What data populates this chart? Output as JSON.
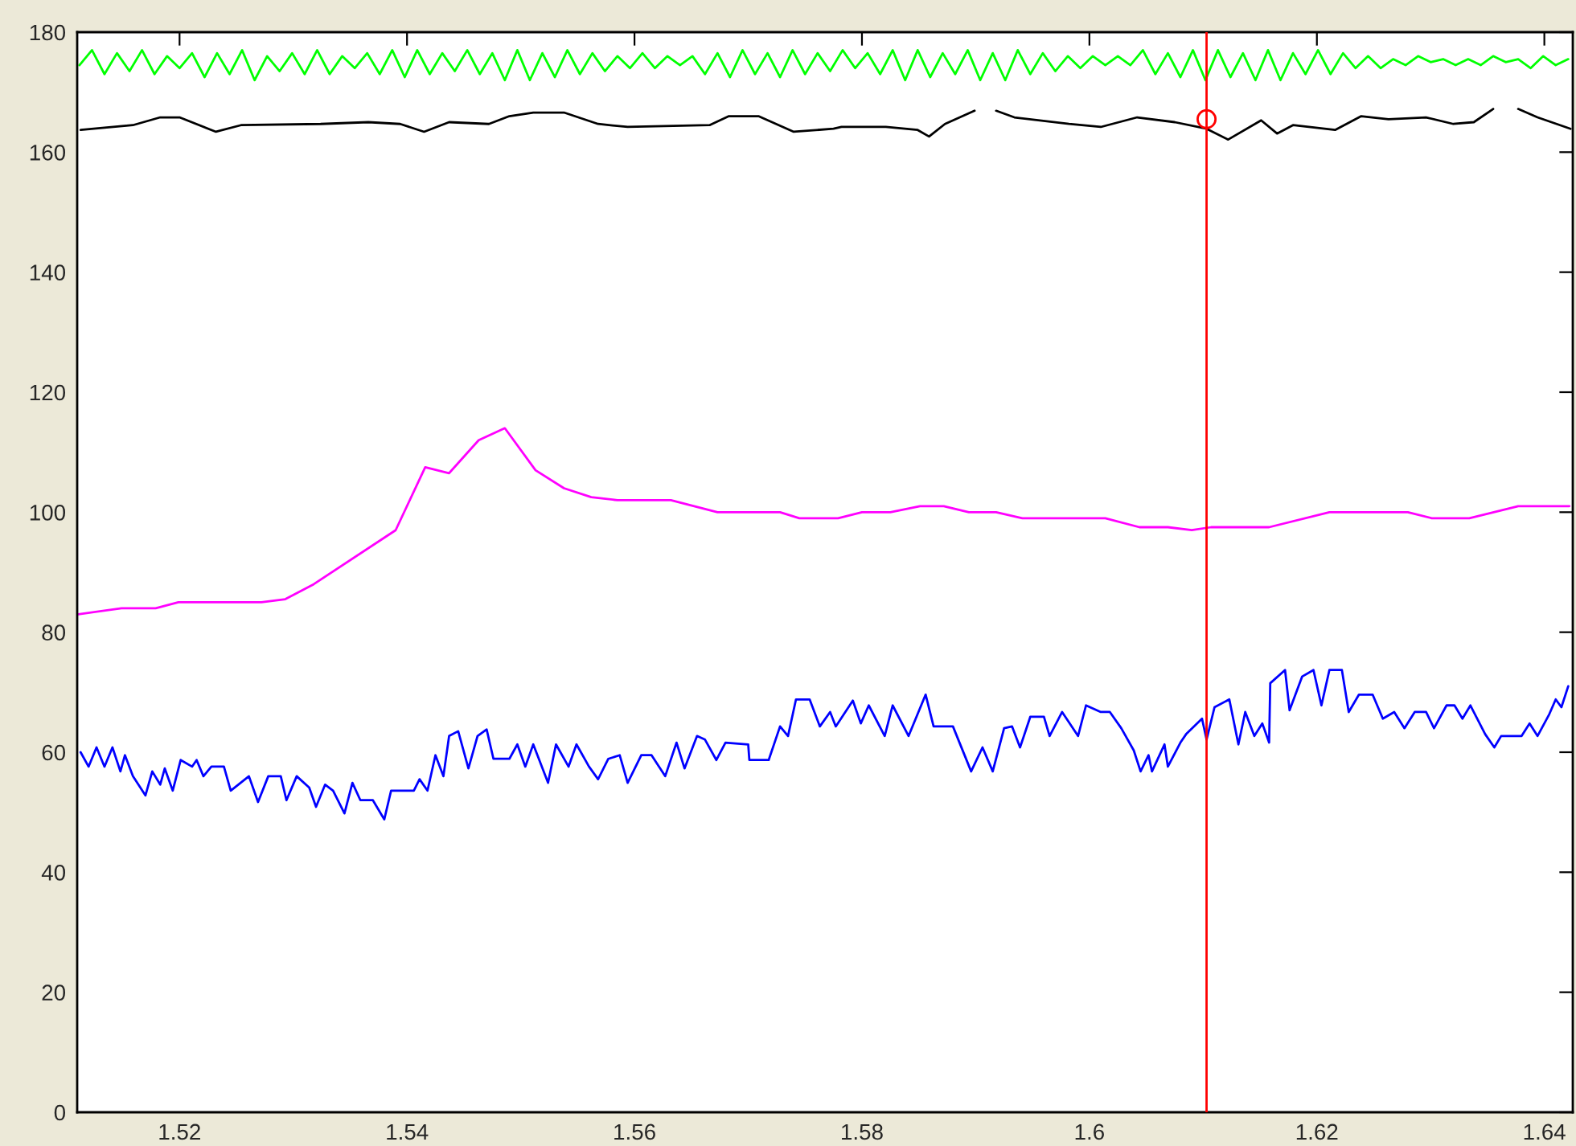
{
  "chart_data": {
    "type": "line",
    "xlim": [
      1.511,
      1.6425
    ],
    "ylim": [
      0,
      180
    ],
    "xticks": [
      1.52,
      1.54,
      1.56,
      1.58,
      {
        "value": 1.6,
        "label": "1.6"
      },
      1.62,
      1.64
    ],
    "yticks": [
      0,
      20,
      40,
      60,
      80,
      100,
      120,
      140,
      160,
      180
    ],
    "grid": false,
    "legend": false,
    "ref_lines": [
      {
        "axis": "x",
        "value": 1.6103,
        "color": "#ff0000",
        "line_style": "solid"
      }
    ],
    "series": [
      {
        "color": "#00ff00",
        "x": [
          1.5112,
          1.5123,
          1.5134,
          1.5145,
          1.5156,
          1.5167,
          1.5178,
          1.5189,
          1.52,
          1.5211,
          1.5222,
          1.5233,
          1.5244,
          1.5255,
          1.5266,
          1.5277,
          1.5288,
          1.5299,
          1.531,
          1.5321,
          1.5332,
          1.5343,
          1.5354,
          1.5365,
          1.5376,
          1.5387,
          1.5398,
          1.5409,
          1.542,
          1.5431,
          1.5442,
          1.5453,
          1.5464,
          1.5475,
          1.5486,
          1.5497,
          1.5508,
          1.5519,
          1.553,
          1.5541,
          1.5552,
          1.5563,
          1.5574,
          1.5585,
          1.5596,
          1.5607,
          1.5618,
          1.5629,
          1.564,
          1.5651,
          1.5662,
          1.5673,
          1.5684,
          1.5695,
          1.5706,
          1.5717,
          1.5728,
          1.5739,
          1.575,
          1.5761,
          1.5772,
          1.5783,
          1.5794,
          1.5805,
          1.5816,
          1.5827,
          1.5838,
          1.5849,
          1.586,
          1.5871,
          1.5882,
          1.5893,
          1.5904,
          1.5915,
          1.5926,
          1.5937,
          1.5948,
          1.5959,
          1.597,
          1.5981,
          1.5992,
          1.6003,
          1.6014,
          1.6025,
          1.6036,
          1.6047,
          1.6058,
          1.6069,
          1.608,
          1.6091,
          1.6102,
          1.6113,
          1.6124,
          1.6135,
          1.6146,
          1.6157,
          1.6168,
          1.6179,
          1.619,
          1.6201,
          1.6212,
          1.6223,
          1.6234,
          1.6245,
          1.6256,
          1.6267,
          1.6278,
          1.6289,
          1.63,
          1.6311,
          1.6322,
          1.6333,
          1.6344,
          1.6355,
          1.6366,
          1.6377,
          1.6388,
          1.6399,
          1.641,
          1.6421
        ],
        "values": [
          174.5,
          177,
          173,
          176.5,
          173.5,
          177,
          173,
          176,
          174,
          176.5,
          172.5,
          176.5,
          173,
          177,
          172,
          176,
          173.5,
          176.5,
          173,
          177,
          173,
          176,
          174,
          176.5,
          173,
          177,
          172.5,
          177,
          173,
          176.5,
          173.5,
          177,
          173,
          176.5,
          172,
          177,
          172,
          176.5,
          172.5,
          177,
          173,
          176.5,
          173.5,
          176,
          174,
          176.5,
          174,
          176,
          174.5,
          176,
          173,
          176.5,
          172.5,
          177,
          173,
          176.5,
          172.5,
          177,
          173,
          176.5,
          173.5,
          177,
          174,
          176.5,
          173,
          177,
          172,
          177,
          172.5,
          176.5,
          173,
          177,
          172,
          176.5,
          172,
          177,
          173,
          176.5,
          173.5,
          176,
          174,
          176,
          174.5,
          176,
          174.5,
          177,
          173,
          176.5,
          172.5,
          177,
          172,
          177,
          172.5,
          176.5,
          172,
          177,
          172,
          176.5,
          173,
          177,
          173,
          176.5,
          174,
          176,
          174,
          175.5,
          174.5,
          176,
          175,
          175.5,
          174.5,
          175.5,
          174.5,
          176,
          175,
          175.5,
          174,
          176,
          174.5,
          175.5
        ]
      },
      {
        "color": "#000000",
        "x": [
          1.5113,
          1.5159,
          1.5183,
          1.52,
          1.5232,
          1.5254,
          1.5324,
          1.5366,
          1.5394,
          1.5415,
          1.5437,
          1.5472,
          1.549,
          1.5511,
          1.5538,
          1.5568,
          1.5594,
          1.5666,
          1.5683,
          1.5709,
          1.574,
          1.5775,
          1.5782,
          1.5821,
          1.5849,
          1.5859,
          1.5873,
          1.5899,
          1.5905,
          1.5918,
          1.5934,
          1.5982,
          1.601,
          1.6042,
          1.6075,
          1.6103,
          1.6122,
          1.6151,
          1.6165,
          1.6179,
          1.6216,
          1.6239,
          1.6263,
          1.6296,
          1.632,
          1.6338,
          1.6355,
          1.6365,
          1.6377,
          1.6394,
          1.6423
        ],
        "values": [
          163.7,
          164.5,
          165.8,
          165.8,
          163.4,
          164.5,
          164.7,
          165,
          164.7,
          163.4,
          165,
          164.7,
          166,
          166.6,
          166.6,
          164.7,
          164.2,
          164.5,
          166,
          166,
          163.4,
          163.9,
          164.2,
          164.2,
          163.7,
          162.6,
          164.7,
          166.9,
          null,
          166.9,
          165.8,
          164.7,
          164.2,
          165.8,
          165,
          163.9,
          162.1,
          165.3,
          163.1,
          164.5,
          163.7,
          166,
          165.5,
          165.8,
          164.7,
          165,
          167.2,
          null,
          167.2,
          165.8,
          163.9
        ]
      },
      {
        "color": "#ff00ff",
        "x": [
          1.5111,
          1.5149,
          1.5179,
          1.5199,
          1.5272,
          1.5293,
          1.5318,
          1.539,
          1.5416,
          1.5437,
          1.5463,
          1.5486,
          1.5513,
          1.5538,
          1.5562,
          1.5585,
          1.5632,
          1.5673,
          1.5728,
          1.5745,
          1.5779,
          1.58,
          1.5825,
          1.5851,
          1.5872,
          1.5894,
          1.5918,
          1.5941,
          1.6014,
          1.6044,
          1.6069,
          1.609,
          1.6107,
          1.6158,
          1.6211,
          1.628,
          1.6301,
          1.6334,
          1.6377,
          1.6422
        ],
        "values": [
          83,
          84,
          84,
          85,
          85,
          85.5,
          88,
          97,
          107.5,
          106.5,
          112,
          114,
          107,
          104,
          102.5,
          102,
          102,
          100,
          100,
          99,
          99,
          100,
          100,
          101,
          101,
          100,
          100,
          99,
          99,
          97.5,
          97.5,
          97,
          97.5,
          97.5,
          100,
          100,
          99,
          99,
          101,
          101
        ]
      },
      {
        "color": "#0000ff",
        "x": [
          1.5113,
          1.512,
          1.5127,
          1.5134,
          1.5141,
          1.5148,
          1.5152,
          1.5159,
          1.517,
          1.5176,
          1.5183,
          1.5187,
          1.5194,
          1.5201,
          1.5211,
          1.5215,
          1.5221,
          1.5228,
          1.5239,
          1.5245,
          1.5261,
          1.5269,
          1.5278,
          1.5289,
          1.5294,
          1.5303,
          1.5314,
          1.532,
          1.5328,
          1.5335,
          1.5345,
          1.5352,
          1.5359,
          1.537,
          1.538,
          1.5386,
          1.5406,
          1.5411,
          1.5418,
          1.5425,
          1.5432,
          1.5437,
          1.5445,
          1.5454,
          1.5462,
          1.547,
          1.5476,
          1.549,
          1.5497,
          1.5504,
          1.5511,
          1.5524,
          1.5531,
          1.5542,
          1.5549,
          1.556,
          1.5568,
          1.5577,
          1.5587,
          1.5594,
          1.5606,
          1.5615,
          1.5627,
          1.5637,
          1.5644,
          1.5655,
          1.5662,
          1.5672,
          1.568,
          1.57,
          1.5701,
          1.5718,
          1.5728,
          1.5735,
          1.5742,
          1.5754,
          1.5763,
          1.5772,
          1.5777,
          1.5792,
          1.5799,
          1.5806,
          1.582,
          1.5827,
          1.5841,
          1.5856,
          1.5863,
          1.588,
          1.5896,
          1.5906,
          1.5915,
          1.5925,
          1.5932,
          1.5939,
          1.5948,
          1.596,
          1.5965,
          1.5976,
          1.599,
          1.5997,
          1.601,
          1.6018,
          1.6028,
          1.6039,
          1.6045,
          1.6052,
          1.6055,
          1.6066,
          1.6069,
          1.608,
          1.6085,
          1.6099,
          1.6103,
          1.611,
          1.6123,
          1.6131,
          1.6137,
          1.6145,
          1.6152,
          1.6158,
          1.6159,
          1.6172,
          1.6176,
          1.6187,
          1.6197,
          1.6204,
          1.6211,
          1.6222,
          1.6228,
          1.6237,
          1.6249,
          1.6258,
          1.6268,
          1.6277,
          1.6286,
          1.6296,
          1.6303,
          1.6314,
          1.6321,
          1.6328,
          1.6335,
          1.6348,
          1.6356,
          1.6362,
          1.638,
          1.6387,
          1.6394,
          1.6404,
          1.641,
          1.6415,
          1.6421
        ],
        "values": [
          60,
          57.6,
          60.8,
          57.6,
          60.8,
          56.8,
          59.5,
          56,
          52.8,
          56.8,
          54.6,
          57.3,
          53.6,
          58.7,
          57.6,
          58.7,
          56,
          57.6,
          57.6,
          53.6,
          56,
          51.7,
          56,
          56,
          52,
          56,
          54.1,
          50.9,
          54.6,
          53.6,
          49.8,
          54.9,
          52,
          52,
          48.8,
          53.6,
          53.6,
          55.5,
          53.6,
          59.5,
          56,
          62.7,
          63.5,
          57.3,
          62.7,
          63.8,
          58.9,
          58.9,
          61.3,
          57.6,
          61.3,
          54.9,
          61.3,
          57.6,
          61.3,
          57.6,
          55.5,
          58.9,
          59.5,
          54.9,
          59.5,
          59.5,
          56,
          61.6,
          57.3,
          62.7,
          62.1,
          58.7,
          61.6,
          61.3,
          58.7,
          58.7,
          64.3,
          62.7,
          68.8,
          68.8,
          64.3,
          66.7,
          64.3,
          68.6,
          64.8,
          67.8,
          62.7,
          67.8,
          62.7,
          69.6,
          64.3,
          64.3,
          56.8,
          60.8,
          56.8,
          64,
          64.3,
          60.8,
          65.9,
          65.9,
          62.7,
          66.7,
          62.7,
          67.8,
          66.7,
          66.7,
          64,
          60.3,
          56.8,
          59.5,
          56.8,
          61.3,
          57.6,
          61.6,
          63,
          65.6,
          62.1,
          67.5,
          68.8,
          61.3,
          66.7,
          62.7,
          64.8,
          61.6,
          71.5,
          73.7,
          67,
          72.6,
          73.7,
          67.8,
          73.7,
          73.7,
          66.7,
          69.6,
          69.6,
          65.6,
          66.7,
          64,
          66.7,
          66.7,
          64,
          67.8,
          67.8,
          65.6,
          67.8,
          63,
          60.8,
          62.7,
          62.7,
          64.8,
          62.7,
          66.2,
          68.8,
          67.5,
          71
        ]
      },
      {
        "type": "scatter",
        "color": "#ff0000",
        "marker": "circle",
        "x": [
          1.6103
        ],
        "values": [
          165.5
        ]
      }
    ]
  }
}
